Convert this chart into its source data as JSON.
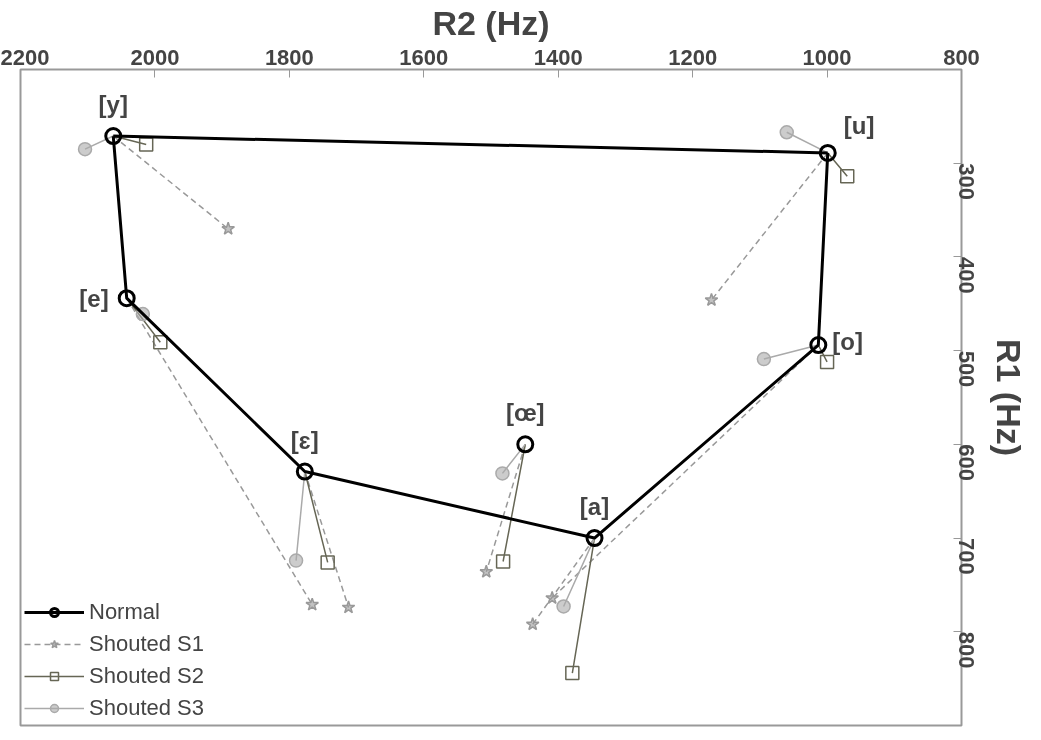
{
  "chart_data": {
    "type": "line",
    "xlabel": "R2 (Hz)",
    "ylabel": "R1 (Hz)",
    "xlim": [
      2200,
      800
    ],
    "xticks": [
      2200,
      2000,
      1800,
      1600,
      1400,
      1200,
      1000,
      800
    ],
    "ylim": [
      900,
      200
    ],
    "yticks": [
      300,
      400,
      500,
      600,
      700,
      800
    ],
    "grid": false,
    "legend": "bottom left",
    "series": [
      {
        "name": "Normal",
        "color": "#000000",
        "marker": "circle",
        "line_style": "solid",
        "x": [
          2062,
          999,
          null,
          2062,
          2042,
          1777,
          1346,
          1013,
          999
        ],
        "values": [
          271,
          289,
          null,
          271,
          444,
          629,
          700,
          494,
          289
        ]
      },
      {
        "type": "scatter",
        "color": "#000000",
        "marker": "circle",
        "x": [
          1449
        ],
        "values": [
          600
        ]
      },
      {
        "name": "Shouted S1",
        "color": "#999999",
        "marker": "star",
        "line_style": "dashed",
        "x": [
          2062,
          1891,
          null,
          2042,
          1766,
          null,
          1777,
          1712,
          null,
          1346,
          1438,
          null,
          1013,
          1409,
          null,
          999,
          1172,
          null,
          1449,
          1507
        ],
        "values": [
          271,
          370,
          null,
          444,
          771,
          null,
          629,
          774,
          null,
          700,
          792,
          null,
          494,
          764,
          null,
          289,
          446,
          null,
          600,
          736
        ]
      },
      {
        "name": "Shouted S2",
        "color": "#666655",
        "marker": "square",
        "line_style": "solid",
        "x": [
          2062,
          2013,
          null,
          2042,
          1992,
          null,
          1777,
          1743,
          null,
          1346,
          1379,
          null,
          1013,
          1000,
          null,
          999,
          970,
          null,
          1449,
          1482
        ],
        "values": [
          271,
          280,
          null,
          444,
          491,
          null,
          629,
          726,
          null,
          700,
          844,
          null,
          494,
          512,
          null,
          289,
          314,
          null,
          600,
          725
        ]
      },
      {
        "name": "Shouted S3",
        "color": "#aaaaaa",
        "marker": "circle",
        "line_style": "solid",
        "x": [
          2062,
          2104,
          null,
          2042,
          2018,
          null,
          1777,
          1790,
          null,
          1346,
          1392,
          null,
          1013,
          1094,
          null,
          999,
          1060,
          null,
          1449,
          1483
        ],
        "values": [
          271,
          285,
          null,
          444,
          461,
          null,
          629,
          724,
          null,
          700,
          773,
          null,
          494,
          509,
          null,
          289,
          267,
          null,
          600,
          631
        ]
      }
    ],
    "annotations": [
      {
        "text": "[y]",
        "x": 2062,
        "y": 271
      },
      {
        "text": "[e]",
        "x": 2042,
        "y": 444
      },
      {
        "text": "[ɛ]",
        "x": 1777,
        "y": 629
      },
      {
        "text": "[a]",
        "x": 1346,
        "y": 700
      },
      {
        "text": "[o]",
        "x": 1013,
        "y": 494
      },
      {
        "text": "[u]",
        "x": 999,
        "y": 289
      },
      {
        "text": "[œ]",
        "x": 1449,
        "y": 600
      }
    ]
  }
}
